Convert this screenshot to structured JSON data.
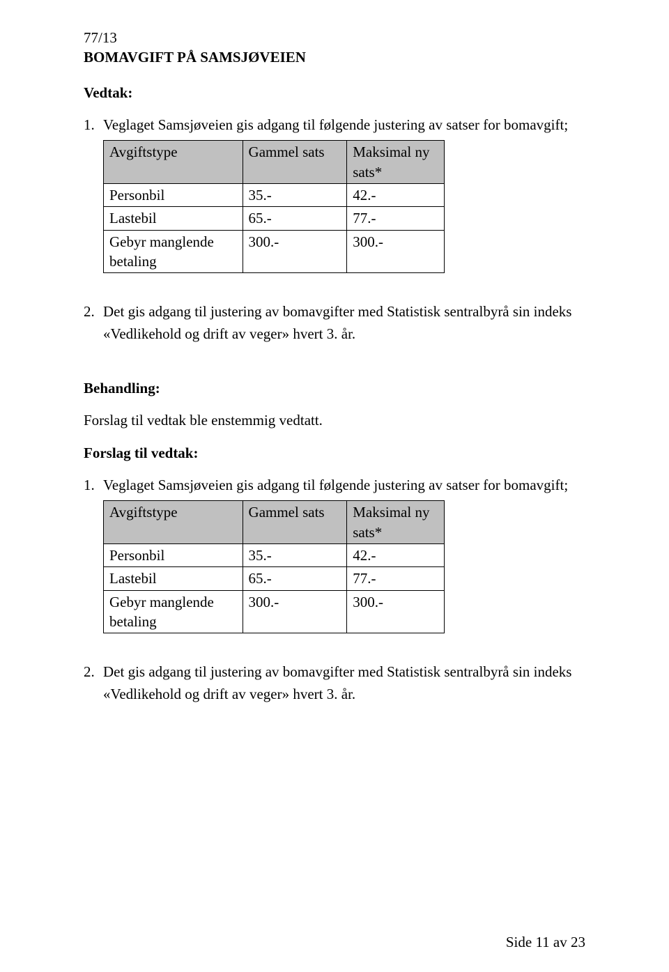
{
  "header": {
    "doc_num": "77/13",
    "title": "BOMAVGIFT PÅ SAMSJØVEIEN"
  },
  "vedtak": {
    "heading": "Vedtak:",
    "item1_marker": "1.",
    "item1_text": "Veglaget Samsjøveien gis adgang til følgende justering av satser for bomavgift;",
    "item2_marker": "2.",
    "item2_text": "Det gis adgang til justering av bomavgifter med Statistisk sentralbyrå sin indeks «Vedlikehold og drift av veger» hvert 3. år."
  },
  "behandling": {
    "heading": "Behandling:",
    "text": "Forslag til vedtak ble enstemmig vedtatt."
  },
  "forslag": {
    "heading": "Forslag til vedtak:",
    "item1_marker": "1.",
    "item1_text": "Veglaget Samsjøveien gis adgang til følgende justering av satser for bomavgift;",
    "item2_marker": "2.",
    "item2_text": "Det gis adgang til justering av bomavgifter med Statistisk sentralbyrå sin indeks «Vedlikehold og drift av veger» hvert 3. år."
  },
  "table": {
    "h1": "Avgiftstype",
    "h2": "Gammel sats",
    "h3_l1": "Maksimal ny",
    "h3_l2": "sats*",
    "r1c1": "Personbil",
    "r1c2": "35.-",
    "r1c3": "42.-",
    "r2c1": "Lastebil",
    "r2c2": "65.-",
    "r2c3": "77.-",
    "r3c1_l1": "Gebyr manglende",
    "r3c1_l2": "betaling",
    "r3c2": "300.-",
    "r3c3": "300.-"
  },
  "footer": {
    "text": "Side 11 av 23"
  },
  "colors": {
    "header_bg": "#c0c0c0",
    "text": "#000000",
    "page_bg": "#ffffff",
    "border": "#000000"
  }
}
